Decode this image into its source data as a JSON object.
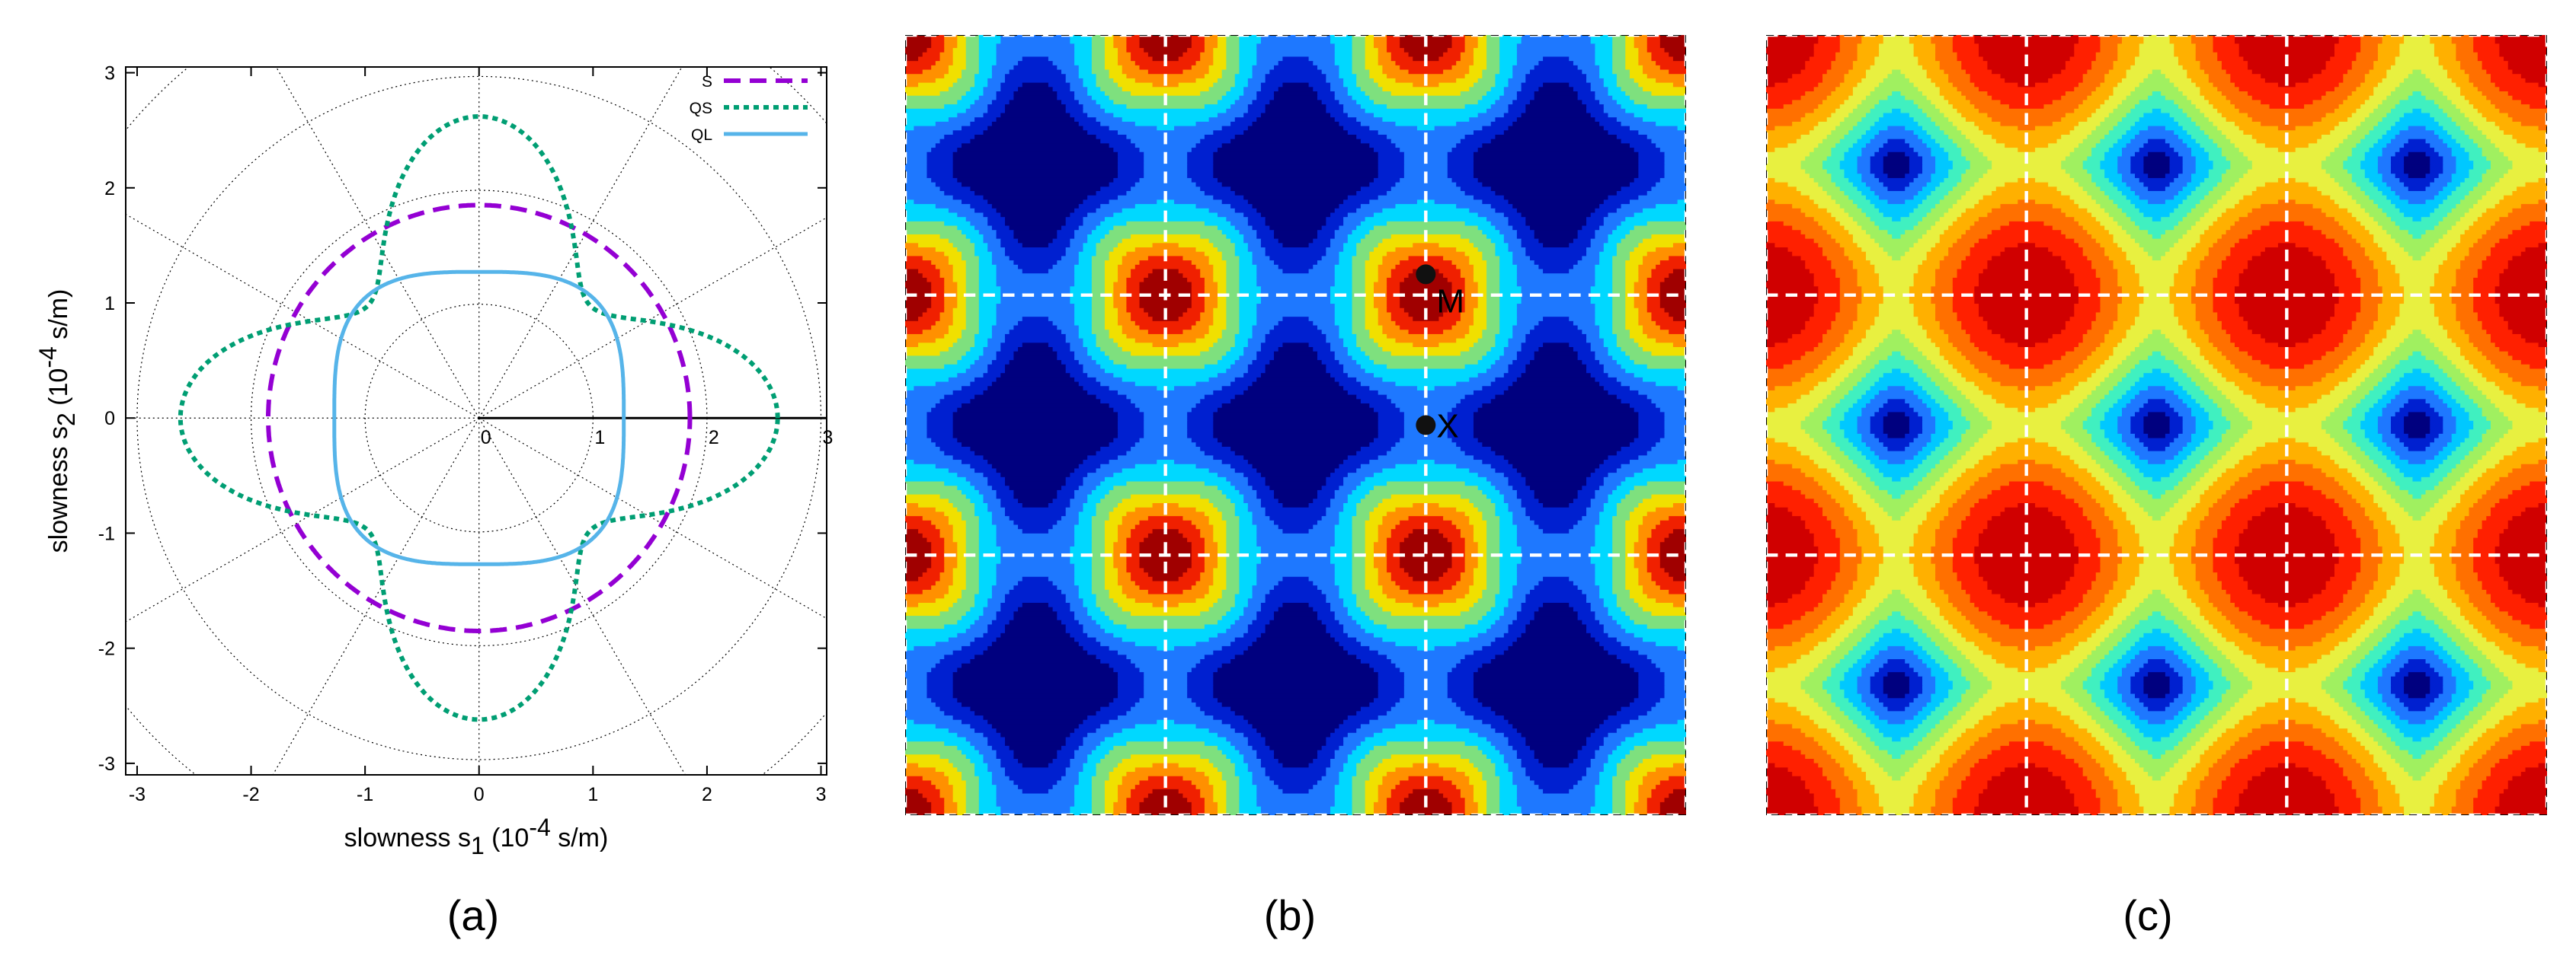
{
  "chart_data": [
    {
      "type": "line",
      "panel_label": "(a)",
      "xlabel": {
        "main": "slowness s",
        "sub": "1",
        "pre": " (10",
        "sup": "-4",
        "post": " s/m)"
      },
      "ylabel": {
        "main": "slowness s",
        "sub": "2",
        "pre": " (10",
        "sup": "-4",
        "post": " s/m)"
      },
      "xlim": [
        -3.1,
        3.05
      ],
      "ylim": [
        -3.1,
        3.05
      ],
      "x_ticks": [
        "-3",
        "-2",
        "-1",
        "0",
        "1",
        "2",
        "3"
      ],
      "y_ticks": [
        "-3",
        "-2",
        "-1",
        "0",
        "1",
        "2",
        "3"
      ],
      "polar_ticks": [
        "0",
        "1",
        "2",
        "3"
      ],
      "grid": "polar (dotted circles and radial lines)",
      "legend_position": "top-right",
      "series": [
        {
          "name": "S",
          "style": "dashed",
          "color": "#9400d3",
          "radius_mean": 1.85,
          "radius_amp": 0.0,
          "harmonic": 4
        },
        {
          "name": "QS",
          "style": "dotted",
          "color": "#009e73",
          "radius_mean": 2.0,
          "radius_amp": 0.65,
          "radius_p4": 0.62,
          "radius_p8": 0.0,
          "note": ""
        },
        {
          "name": "QL",
          "style": "solid",
          "color": "#56b4e9",
          "radius_axis": 1.27,
          "radius_diag": 1.19
        }
      ]
    },
    {
      "type": "heatmap",
      "panel_label": "(b)",
      "periods": [
        3,
        3
      ],
      "levels": 8,
      "colormap": [
        "#00007f",
        "#0020d0",
        "#1e78ff",
        "#00d8ff",
        "#7ee07e",
        "#f0e000",
        "#ff9000",
        "#f02000",
        "#a00000"
      ],
      "markers": [
        {
          "label": "M"
        },
        {
          "label": "X"
        }
      ]
    },
    {
      "type": "heatmap",
      "panel_label": "(c)",
      "periods": [
        3,
        3
      ],
      "levels": 11,
      "colormap": [
        "#00007f",
        "#0020d0",
        "#1e78ff",
        "#00c8ff",
        "#40f0c0",
        "#a0f060",
        "#e8f040",
        "#ffb000",
        "#ff7000",
        "#ff2000",
        "#d00000"
      ]
    }
  ],
  "colors": {
    "background": "#ffffff",
    "dashline": "#ffffff",
    "grid": "#000000"
  }
}
